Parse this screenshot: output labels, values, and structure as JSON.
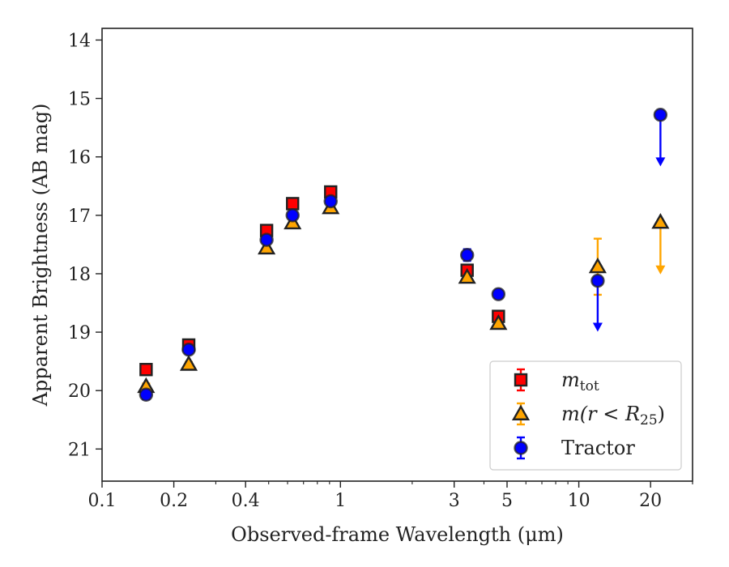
{
  "chart_data": {
    "type": "scatter",
    "xlabel": "Observed-frame Wavelength (μm)",
    "ylabel": "Apparent Brightness (AB mag)",
    "xscale": "log",
    "xlim": [
      0.1,
      30
    ],
    "ylim": [
      21.55,
      13.8
    ],
    "y_inverted": true,
    "x_ticks": [
      0.1,
      0.2,
      0.4,
      1,
      3,
      5,
      10,
      20
    ],
    "x_tick_labels": [
      "0.1",
      "0.2",
      "0.4",
      "1",
      "3",
      "5",
      "10",
      "20"
    ],
    "y_ticks": [
      14,
      15,
      16,
      17,
      18,
      19,
      20,
      21
    ],
    "y_tick_labels": [
      "14",
      "15",
      "16",
      "17",
      "18",
      "19",
      "20",
      "21"
    ],
    "legend_position": "lower-right",
    "series": [
      {
        "name": "m_tot",
        "label_parts": {
          "main": "m",
          "sub": "tot"
        },
        "marker": "square",
        "color": "#ff0000",
        "errcolor": "#ff0000",
        "points": [
          {
            "x": 0.153,
            "y": 19.64,
            "err": 0.05
          },
          {
            "x": 0.231,
            "y": 19.22,
            "err": 0.04
          },
          {
            "x": 0.49,
            "y": 17.26,
            "err": 0.03
          },
          {
            "x": 0.63,
            "y": 16.8,
            "err": 0.03
          },
          {
            "x": 0.91,
            "y": 16.6,
            "err": 0.03
          },
          {
            "x": 3.4,
            "y": 17.94,
            "err": 0.03
          },
          {
            "x": 4.6,
            "y": 18.73,
            "err": 0.03
          }
        ]
      },
      {
        "name": "m(r<R25)",
        "label_parts": {
          "pre": "m(r < R",
          "sub": "25",
          "post": ")"
        },
        "marker": "triangle",
        "color": "#ffa500",
        "errcolor": "#ffa500",
        "points": [
          {
            "x": 0.153,
            "y": 19.93,
            "err": 0.05
          },
          {
            "x": 0.231,
            "y": 19.55,
            "err": 0.04
          },
          {
            "x": 0.49,
            "y": 17.56,
            "err": 0.03
          },
          {
            "x": 0.63,
            "y": 17.13,
            "err": 0.03
          },
          {
            "x": 0.91,
            "y": 16.87,
            "err": 0.03
          },
          {
            "x": 3.4,
            "y": 18.06,
            "err": 0.03
          },
          {
            "x": 4.6,
            "y": 18.85,
            "err": 0.03
          },
          {
            "x": 12.0,
            "y": 17.88,
            "err": 0.48
          },
          {
            "x": 22.0,
            "y": 17.12,
            "upper_limit": 17.97
          }
        ]
      },
      {
        "name": "Tractor",
        "marker": "circle",
        "color": "#0000ff",
        "errcolor": "#0000ff",
        "points": [
          {
            "x": 0.153,
            "y": 20.07,
            "err": 0.08
          },
          {
            "x": 0.231,
            "y": 19.3,
            "err": 0.05
          },
          {
            "x": 0.49,
            "y": 17.42,
            "err": 0.04
          },
          {
            "x": 0.63,
            "y": 17.0,
            "err": 0.04
          },
          {
            "x": 0.91,
            "y": 16.76,
            "err": 0.04
          },
          {
            "x": 3.4,
            "y": 17.68,
            "err": 0.1
          },
          {
            "x": 4.6,
            "y": 18.35,
            "err": 0.06
          },
          {
            "x": 12.0,
            "y": 18.12,
            "upper_limit": 18.95
          },
          {
            "x": 22.0,
            "y": 15.28,
            "upper_limit": 16.12
          }
        ]
      }
    ]
  }
}
